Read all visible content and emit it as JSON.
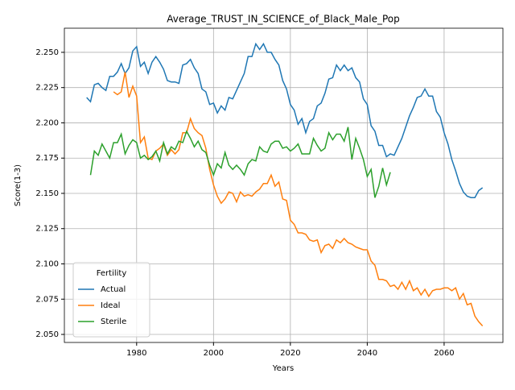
{
  "chart_data": {
    "type": "line",
    "title": "Average_TRUST_IN_SCIENCE_of_Black_Male_Pop",
    "xlabel": "Years",
    "ylabel": "Score(1-3)",
    "x": [
      1967,
      1968,
      1969,
      1970,
      1971,
      1972,
      1973,
      1974,
      1975,
      1976,
      1977,
      1978,
      1979,
      1980,
      1981,
      1982,
      1983,
      1984,
      1985,
      1986,
      1987,
      1988,
      1989,
      1990,
      1991,
      1992,
      1993,
      1994,
      1995,
      1996,
      1997,
      1998,
      1999,
      2000,
      2001,
      2002,
      2003,
      2004,
      2005,
      2006,
      2007,
      2008,
      2009,
      2010,
      2011,
      2012,
      2013,
      2014,
      2015,
      2016,
      2017,
      2018,
      2019,
      2020,
      2021,
      2022,
      2023,
      2024,
      2025,
      2026,
      2027,
      2028,
      2029,
      2030,
      2031,
      2032,
      2033,
      2034,
      2035,
      2036,
      2037,
      2038,
      2039,
      2040,
      2041,
      2042,
      2043,
      2044,
      2045,
      2046,
      2047,
      2048,
      2049,
      2050,
      2051,
      2052,
      2053,
      2054,
      2055,
      2056,
      2057,
      2058,
      2059,
      2060,
      2061,
      2062,
      2063,
      2064,
      2065,
      2066,
      2067,
      2068,
      2069,
      2070
    ],
    "series": [
      {
        "name": "Actual",
        "color": "#1f77b4",
        "values": [
          2.218,
          2.215,
          2.227,
          2.228,
          2.225,
          2.223,
          2.233,
          2.233,
          2.236,
          2.242,
          2.235,
          2.239,
          2.251,
          2.254,
          2.24,
          2.243,
          2.235,
          2.243,
          2.247,
          2.243,
          2.238,
          2.23,
          2.229,
          2.229,
          2.228,
          2.241,
          2.242,
          2.245,
          2.239,
          2.235,
          2.224,
          2.222,
          2.213,
          2.214,
          2.207,
          2.212,
          2.209,
          2.218,
          2.217,
          2.223,
          2.229,
          2.235,
          2.247,
          2.247,
          2.256,
          2.252,
          2.256,
          2.25,
          2.25,
          2.245,
          2.241,
          2.23,
          2.224,
          2.213,
          2.209,
          2.199,
          2.203,
          2.193,
          2.201,
          2.203,
          2.212,
          2.214,
          2.221,
          2.231,
          2.232,
          2.241,
          2.237,
          2.241,
          2.237,
          2.239,
          2.232,
          2.229,
          2.217,
          2.213,
          2.198,
          2.194,
          2.184,
          2.184,
          2.176,
          2.178,
          2.177,
          2.183,
          2.189,
          2.197,
          2.205,
          2.211,
          2.218,
          2.219,
          2.224,
          2.219,
          2.219,
          2.208,
          2.204,
          2.193,
          2.185,
          2.174,
          2.166,
          2.157,
          2.151,
          2.148,
          2.147,
          2.147,
          2.152,
          2.154
        ]
      },
      {
        "name": "Ideal",
        "color": "#ff7f0e",
        "values": [
          null,
          null,
          null,
          null,
          null,
          null,
          null,
          2.222,
          2.22,
          2.222,
          2.236,
          2.218,
          2.226,
          2.219,
          2.186,
          2.19,
          2.175,
          2.174,
          2.18,
          2.182,
          2.185,
          2.177,
          2.181,
          2.178,
          2.181,
          2.193,
          2.193,
          2.203,
          2.196,
          2.193,
          2.191,
          2.182,
          2.167,
          2.156,
          2.148,
          2.143,
          2.146,
          2.151,
          2.15,
          2.144,
          2.151,
          2.148,
          2.149,
          2.148,
          2.151,
          2.153,
          2.157,
          2.157,
          2.163,
          2.155,
          2.158,
          2.146,
          2.145,
          2.131,
          2.128,
          2.122,
          2.122,
          2.121,
          2.117,
          2.116,
          2.117,
          2.108,
          2.113,
          2.114,
          2.111,
          2.117,
          2.115,
          2.118,
          2.115,
          2.114,
          2.112,
          2.111,
          2.11,
          2.11,
          2.102,
          2.099,
          2.089,
          2.089,
          2.088,
          2.084,
          2.085,
          2.082,
          2.087,
          2.082,
          2.088,
          2.081,
          2.083,
          2.078,
          2.082,
          2.077,
          2.081,
          2.082,
          2.082,
          2.083,
          2.083,
          2.081,
          2.083,
          2.075,
          2.079,
          2.071,
          2.072,
          2.063,
          2.059,
          2.056
        ]
      },
      {
        "name": "Sterile",
        "color": "#2ca02c",
        "values": [
          null,
          2.163,
          2.18,
          2.177,
          2.185,
          2.18,
          2.175,
          2.186,
          2.186,
          2.192,
          2.178,
          2.184,
          2.188,
          2.186,
          2.175,
          2.177,
          2.174,
          2.176,
          2.18,
          2.173,
          2.186,
          2.178,
          2.183,
          2.181,
          2.187,
          2.186,
          2.194,
          2.189,
          2.183,
          2.187,
          2.181,
          2.179,
          2.17,
          2.163,
          2.171,
          2.168,
          2.179,
          2.17,
          2.167,
          2.17,
          2.167,
          2.163,
          2.171,
          2.174,
          2.173,
          2.183,
          2.18,
          2.179,
          2.185,
          2.187,
          2.187,
          2.182,
          2.183,
          2.18,
          2.182,
          2.185,
          2.178,
          2.178,
          2.178,
          2.189,
          2.184,
          2.18,
          2.182,
          2.193,
          2.188,
          2.192,
          2.192,
          2.187,
          2.197,
          2.174,
          2.189,
          2.182,
          2.174,
          2.162,
          2.167,
          2.147,
          2.155,
          2.168,
          2.156,
          2.165,
          null,
          null,
          null,
          null,
          null,
          null,
          null,
          null,
          null,
          null,
          null,
          null,
          null,
          null,
          null,
          null,
          null,
          null,
          null,
          null,
          null,
          null,
          null,
          null
        ]
      }
    ],
    "xlim": [
      1961.2,
      2075.3
    ],
    "xticks": [
      1980,
      2000,
      2020,
      2040,
      2060
    ],
    "ylim": [
      2.0443,
      2.2671
    ],
    "yticks": [
      {
        "value": 2.05,
        "label": "2.050"
      },
      {
        "value": 2.075,
        "label": "2.075"
      },
      {
        "value": 2.1,
        "label": "2.100"
      },
      {
        "value": 2.125,
        "label": "2.125"
      },
      {
        "value": 2.15,
        "label": "2.150"
      },
      {
        "value": 2.175,
        "label": "2.175"
      },
      {
        "value": 2.2,
        "label": "2.200"
      },
      {
        "value": 2.225,
        "label": "2.225"
      },
      {
        "value": 2.25,
        "label": "2.250"
      }
    ],
    "grid": true,
    "legend_title": "Fertility",
    "legend_position": "lower left"
  }
}
